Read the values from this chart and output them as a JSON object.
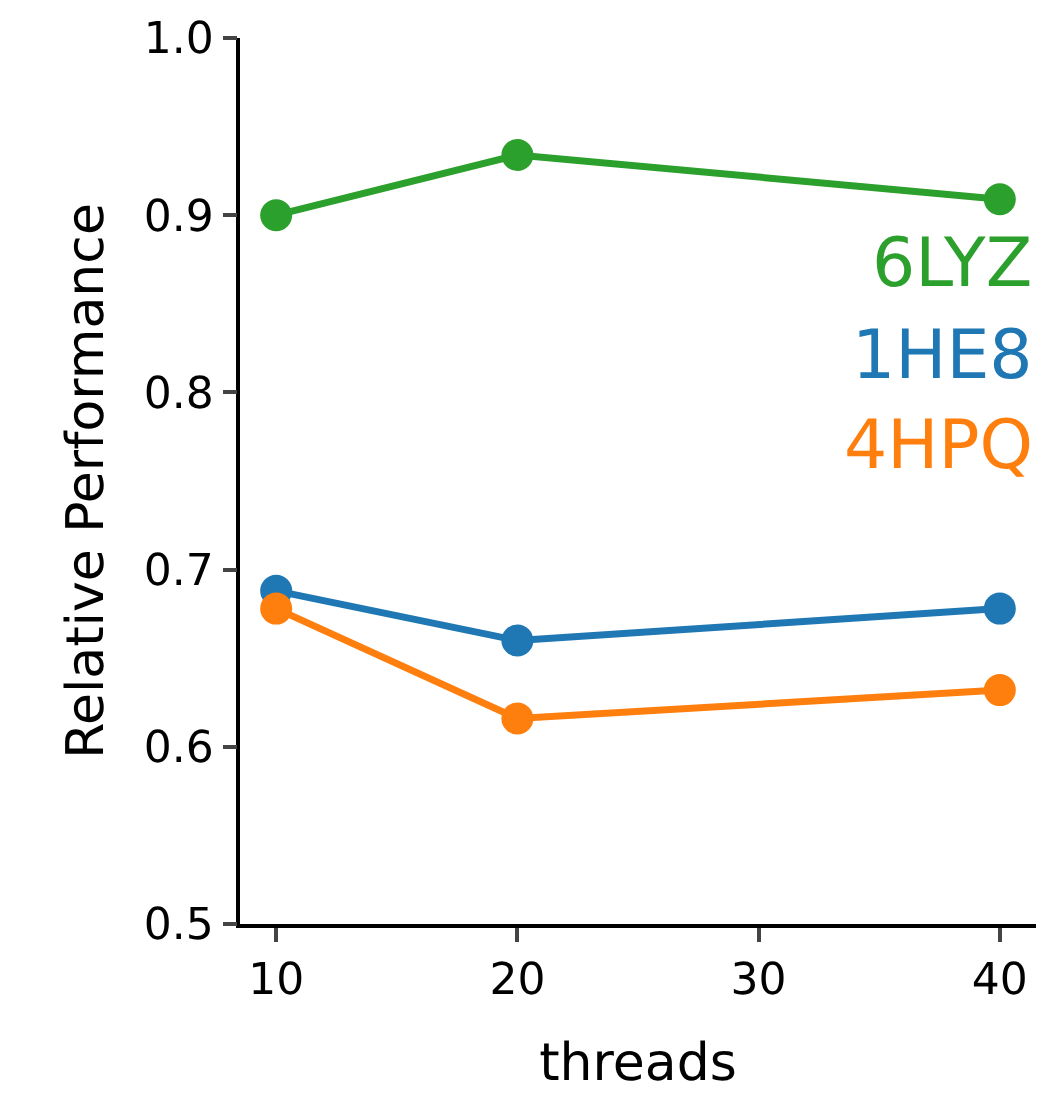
{
  "chart_data": {
    "type": "line",
    "xlabel": "threads",
    "ylabel": "Relative Performance",
    "x": [
      10,
      20,
      40
    ],
    "series": [
      {
        "name": "6LYZ",
        "color": "#2ca02c",
        "values": [
          0.9,
          0.934,
          0.909
        ]
      },
      {
        "name": "1HE8",
        "color": "#1f77b4",
        "values": [
          0.688,
          0.66,
          0.678
        ]
      },
      {
        "name": "4HPQ",
        "color": "#ff7f0e",
        "values": [
          0.678,
          0.616,
          0.632
        ]
      }
    ],
    "xlim": [
      8.5,
      41.5
    ],
    "xticks": [
      10,
      20,
      30,
      40
    ],
    "ylim": [
      0.5,
      1.0
    ],
    "yticks": [
      0.5,
      0.6,
      0.7,
      0.8,
      0.9,
      {
        "value": 1,
        "label": "1.0"
      }
    ],
    "grid": false,
    "legend": false,
    "marker": "circle",
    "line_style": "solid"
  }
}
